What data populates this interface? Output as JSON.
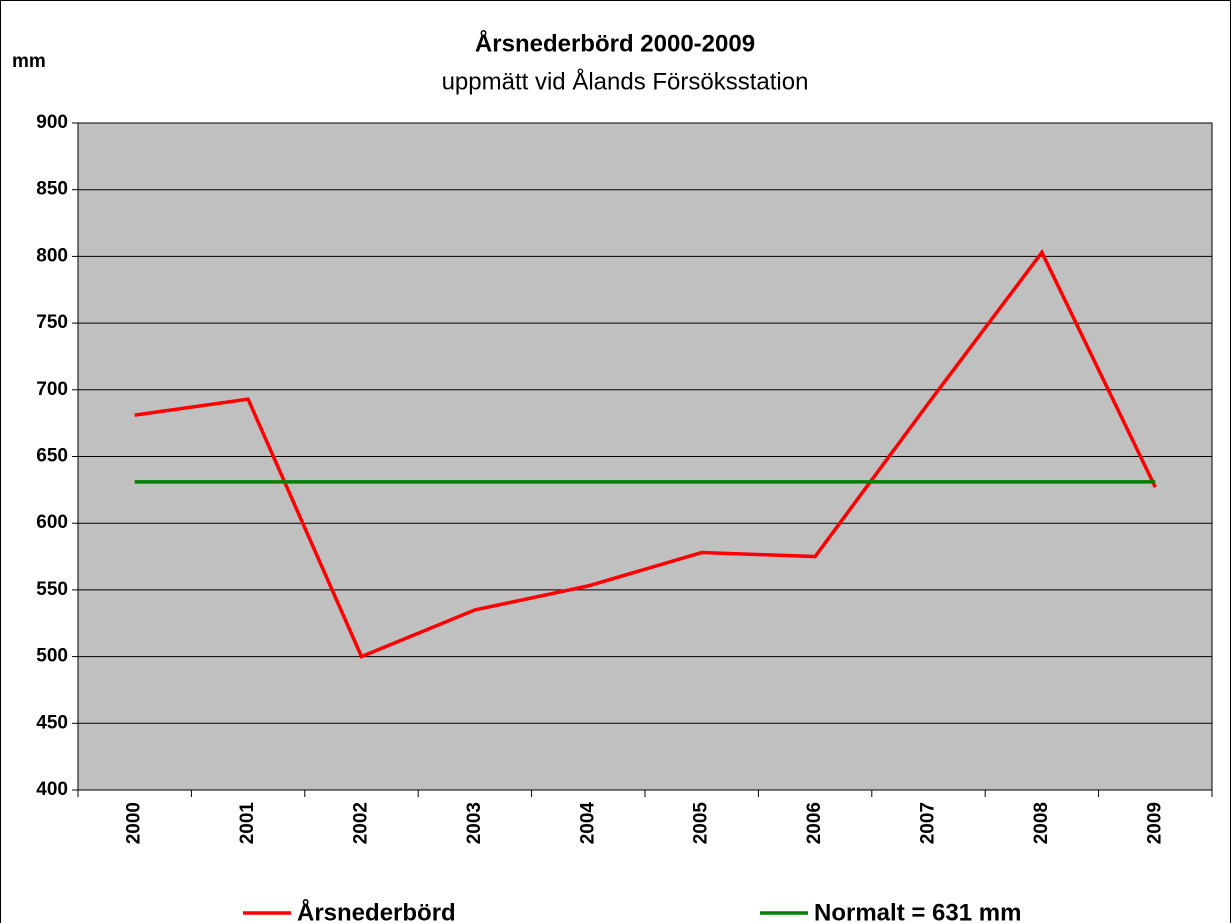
{
  "chart_data": {
    "type": "line",
    "title": "Årsnederbörd 2000-2009",
    "subtitle": "uppmätt vid Ålands Försöksstation",
    "y_label": "mm",
    "categories": [
      "2000",
      "2001",
      "2002",
      "2003",
      "2004",
      "2005",
      "2006",
      "2007",
      "2008",
      "2009"
    ],
    "series": [
      {
        "name": "Årsnederbörd",
        "color": "#ff0000",
        "values": [
          681,
          693,
          500,
          535,
          553,
          578,
          575,
          690,
          803,
          627
        ]
      },
      {
        "name": "Normalt = 631 mm",
        "color": "#008000",
        "values": [
          631,
          631,
          631,
          631,
          631,
          631,
          631,
          631,
          631,
          631
        ]
      }
    ],
    "ylim": [
      400,
      900
    ],
    "yticks": [
      400,
      450,
      500,
      550,
      600,
      650,
      700,
      750,
      800,
      850,
      900
    ],
    "grid": true,
    "legend": "bottom"
  }
}
